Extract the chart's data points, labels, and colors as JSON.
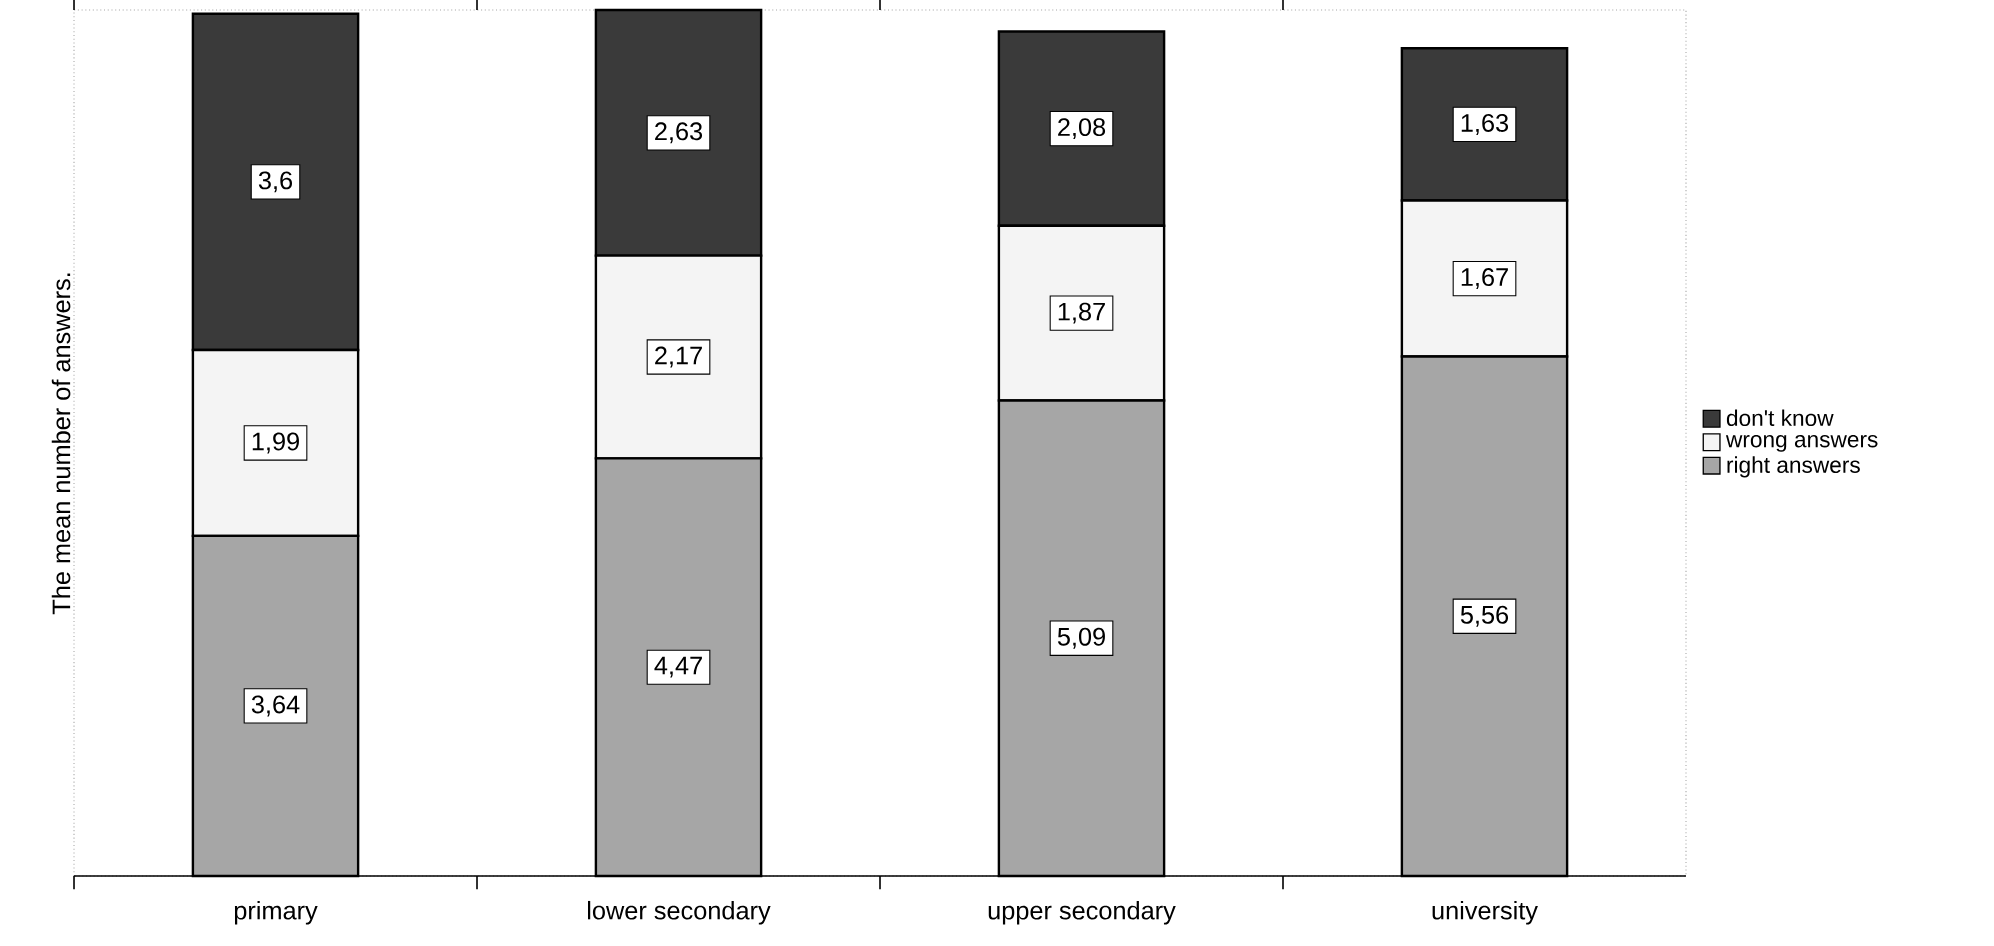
{
  "chart_data": {
    "type": "bar",
    "stacked": true,
    "ylabel": "The mean number of answers.",
    "categories": [
      "primary",
      "lower secondary",
      "upper secondary",
      "university"
    ],
    "legend": "right",
    "series": [
      {
        "name": "right answers",
        "color": "#a6a6a6",
        "values": [
          3.64,
          4.47,
          5.09,
          5.56
        ],
        "value_labels": [
          "3,64",
          "4,47",
          "5,09",
          "5,56"
        ]
      },
      {
        "name": "wrong answers",
        "color": "#f4f4f4",
        "values": [
          1.99,
          2.17,
          1.87,
          1.67
        ],
        "value_labels": [
          "1,99",
          "2,17",
          "1,87",
          "1,67"
        ]
      },
      {
        "name": "don't know",
        "color": "#3a3a3a",
        "values": [
          3.6,
          2.63,
          2.08,
          1.63
        ],
        "value_labels": [
          "3,6",
          "2,63",
          "2,08",
          "1,63"
        ]
      }
    ]
  }
}
